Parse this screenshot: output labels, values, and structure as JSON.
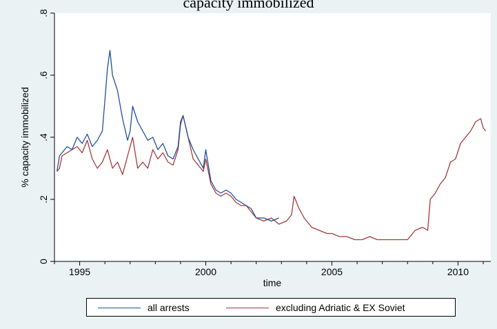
{
  "title": "capacity immobilized",
  "chart_data": {
    "type": "line",
    "xlabel": "time",
    "ylabel": "% capacity immobilized",
    "xlim": [
      1994,
      2011.3
    ],
    "ylim": [
      0,
      0.8
    ],
    "x_ticks": [
      1995,
      2000,
      2005,
      2010
    ],
    "x_tick_labels": [
      "1995",
      "2000",
      "2005",
      "2010"
    ],
    "y_ticks": [
      0,
      0.2,
      0.4,
      0.6,
      0.8
    ],
    "y_tick_labels": [
      "0",
      ".2",
      ".4",
      ".6",
      ".8"
    ],
    "grid": false,
    "legend_position": "bottom",
    "series": [
      {
        "name": "all arrests",
        "color": "#1f4e9c",
        "x": [
          1994.1,
          1994.2,
          1994.3,
          1994.5,
          1994.7,
          1994.9,
          1995.1,
          1995.3,
          1995.5,
          1995.7,
          1995.9,
          1996.0,
          1996.1,
          1996.2,
          1996.3,
          1996.5,
          1996.7,
          1996.9,
          1997.0,
          1997.1,
          1997.3,
          1997.5,
          1997.7,
          1997.9,
          1998.1,
          1998.3,
          1998.5,
          1998.7,
          1998.9,
          1999.0,
          1999.1,
          1999.3,
          1999.5,
          1999.7,
          1999.9,
          2000.0,
          2000.2,
          2000.4,
          2000.6,
          2000.8,
          2001.0,
          2001.2,
          2001.4,
          2001.6,
          2001.8,
          2002.0,
          2002.3,
          2002.6,
          2002.9
        ],
        "y": [
          0.29,
          0.34,
          0.35,
          0.37,
          0.36,
          0.4,
          0.38,
          0.41,
          0.37,
          0.39,
          0.42,
          0.52,
          0.62,
          0.68,
          0.6,
          0.55,
          0.46,
          0.39,
          0.42,
          0.5,
          0.45,
          0.42,
          0.39,
          0.4,
          0.36,
          0.38,
          0.34,
          0.33,
          0.37,
          0.45,
          0.47,
          0.4,
          0.36,
          0.33,
          0.3,
          0.36,
          0.26,
          0.23,
          0.22,
          0.23,
          0.22,
          0.2,
          0.19,
          0.18,
          0.17,
          0.14,
          0.14,
          0.13,
          0.14
        ]
      },
      {
        "name": "excluding Adriatic & EX Soviet",
        "color": "#a43838",
        "x": [
          1994.1,
          1994.2,
          1994.3,
          1994.5,
          1994.7,
          1994.9,
          1995.1,
          1995.3,
          1995.5,
          1995.7,
          1995.9,
          1996.1,
          1996.3,
          1996.5,
          1996.7,
          1996.9,
          1997.1,
          1997.3,
          1997.5,
          1997.7,
          1997.9,
          1998.1,
          1998.3,
          1998.5,
          1998.7,
          1998.9,
          1999.0,
          1999.1,
          1999.3,
          1999.5,
          1999.7,
          1999.9,
          2000.0,
          2000.2,
          2000.4,
          2000.6,
          2000.8,
          2001.0,
          2001.2,
          2001.4,
          2001.6,
          2001.8,
          2002.0,
          2002.3,
          2002.6,
          2002.9,
          2003.2,
          2003.4,
          2003.5,
          2003.7,
          2003.9,
          2004.2,
          2004.5,
          2004.8,
          2005.0,
          2005.3,
          2005.6,
          2005.9,
          2006.2,
          2006.5,
          2006.8,
          2007.1,
          2007.4,
          2007.7,
          2008.0,
          2008.3,
          2008.6,
          2008.8,
          2008.9,
          2009.1,
          2009.3,
          2009.5,
          2009.7,
          2009.9,
          2010.1,
          2010.3,
          2010.5,
          2010.7,
          2010.9,
          2011.0,
          2011.1
        ],
        "y": [
          0.29,
          0.3,
          0.34,
          0.35,
          0.36,
          0.37,
          0.35,
          0.39,
          0.33,
          0.3,
          0.32,
          0.36,
          0.3,
          0.32,
          0.28,
          0.34,
          0.4,
          0.3,
          0.32,
          0.3,
          0.36,
          0.33,
          0.35,
          0.32,
          0.31,
          0.36,
          0.44,
          0.47,
          0.4,
          0.33,
          0.31,
          0.29,
          0.33,
          0.25,
          0.22,
          0.21,
          0.22,
          0.21,
          0.19,
          0.18,
          0.18,
          0.16,
          0.14,
          0.13,
          0.14,
          0.12,
          0.13,
          0.15,
          0.21,
          0.17,
          0.14,
          0.11,
          0.1,
          0.09,
          0.09,
          0.08,
          0.08,
          0.07,
          0.07,
          0.08,
          0.07,
          0.07,
          0.07,
          0.07,
          0.07,
          0.1,
          0.11,
          0.1,
          0.2,
          0.22,
          0.25,
          0.27,
          0.32,
          0.33,
          0.38,
          0.4,
          0.42,
          0.45,
          0.46,
          0.43,
          0.42
        ]
      }
    ]
  }
}
